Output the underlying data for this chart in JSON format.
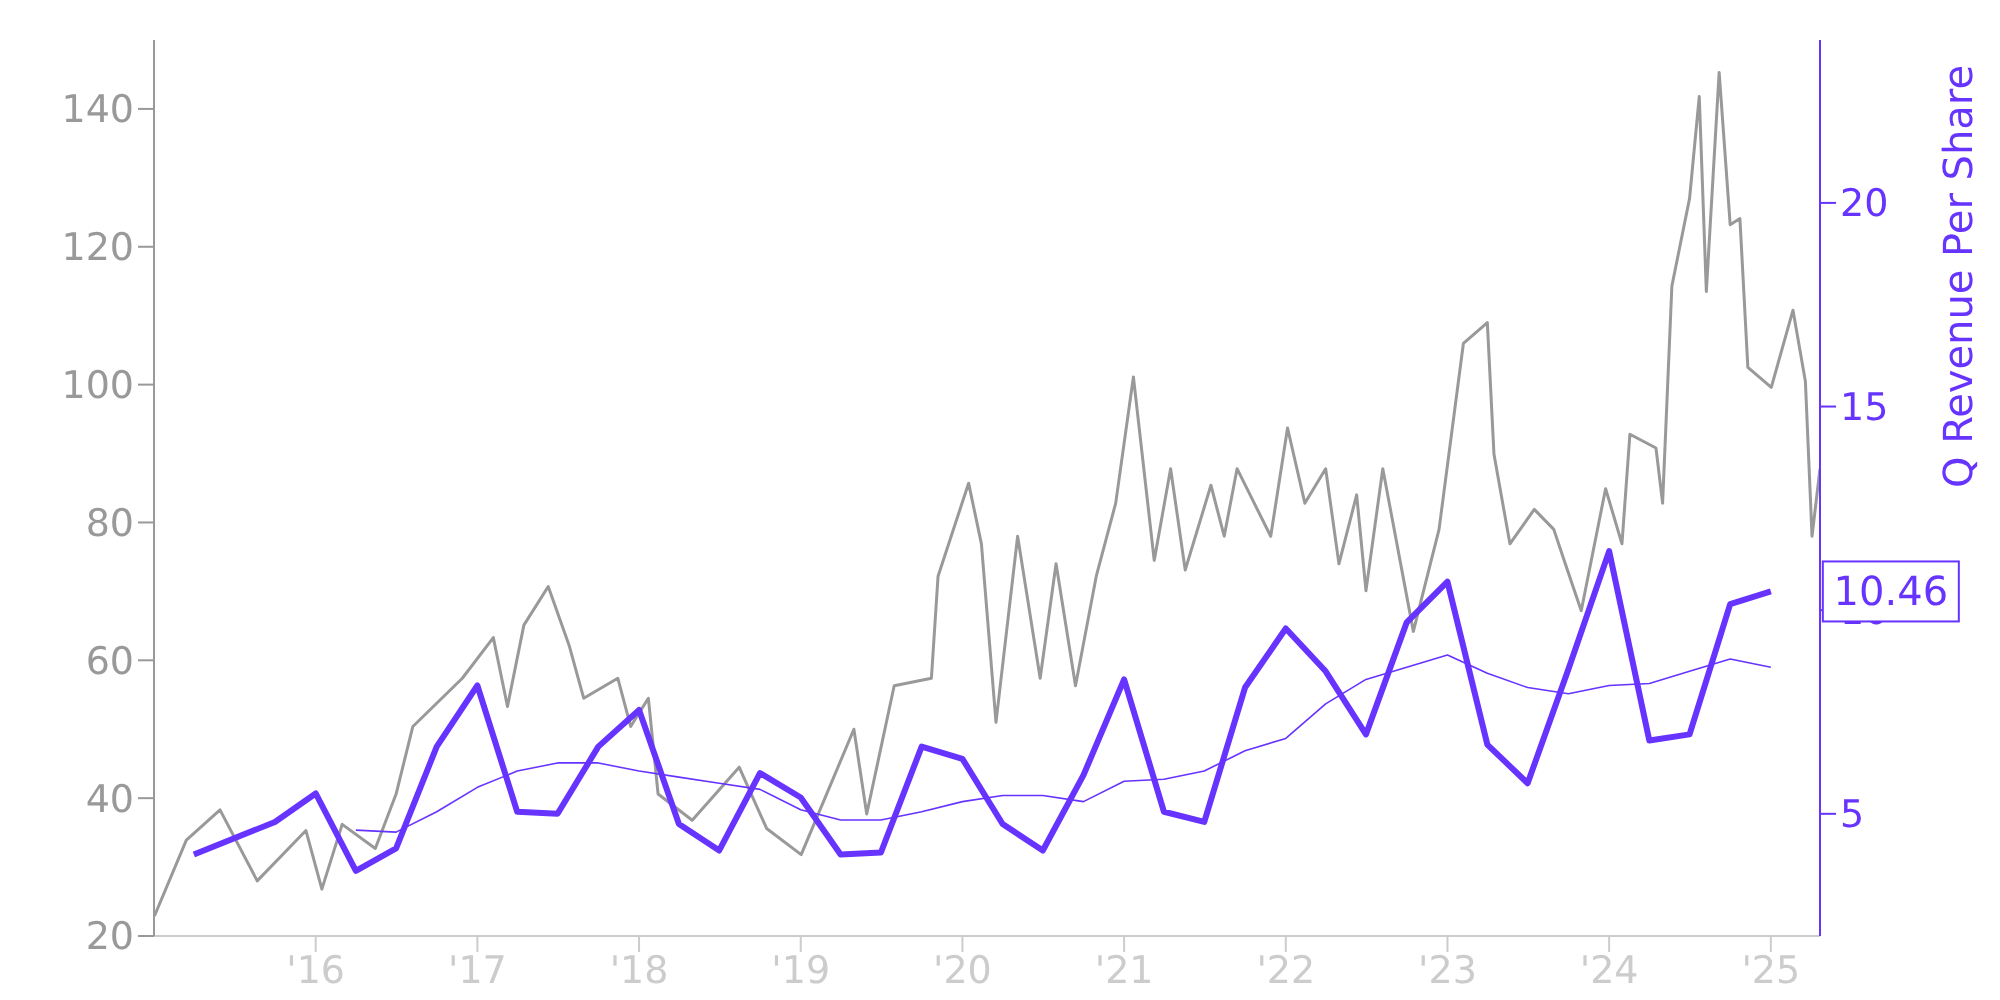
{
  "chart_data": {
    "type": "line",
    "y2label": "Q Revenue Per Share",
    "xlim": [
      "2015-01-01",
      "2025-04-22"
    ],
    "xticks": [
      {
        "value": "2016-01-01",
        "label": "'16"
      },
      {
        "value": "2017-01-01",
        "label": "'17"
      },
      {
        "value": "2018-01-01",
        "label": "'18"
      },
      {
        "value": "2019-01-01",
        "label": "'19"
      },
      {
        "value": "2020-01-01",
        "label": "'20"
      },
      {
        "value": "2021-01-01",
        "label": "'21"
      },
      {
        "value": "2022-01-01",
        "label": "'22"
      },
      {
        "value": "2023-01-01",
        "label": "'23"
      },
      {
        "value": "2024-01-01",
        "label": "'24"
      },
      {
        "value": "2025-01-01",
        "label": "'25"
      }
    ],
    "ylim": [
      20,
      150
    ],
    "yticks": [
      20,
      40,
      60,
      80,
      100,
      120,
      140
    ],
    "y2lim": [
      2,
      24
    ],
    "y2ticks": [
      5,
      10,
      15,
      20
    ],
    "grid": false,
    "legend": false,
    "marker": "none",
    "line_style": "solid",
    "series": [
      {
        "color": "#999999",
        "x": [
          "2015-01-02",
          "2015-03-15",
          "2015-05-30",
          "2015-08-22",
          "2015-12-10",
          "2016-01-15",
          "2016-03-01",
          "2016-05-15",
          "2016-07-01",
          "2016-08-08",
          "2016-11-28",
          "2017-02-06",
          "2017-03-10",
          "2017-04-16",
          "2017-06-10",
          "2017-07-27",
          "2017-08-29",
          "2017-11-14",
          "2017-12-13",
          "2018-01-22",
          "2018-02-13",
          "2018-05-01",
          "2018-08-15",
          "2018-10-16",
          "2019-01-02",
          "2019-05-01",
          "2019-05-30",
          "2019-07-31",
          "2019-10-23",
          "2019-11-07",
          "2020-01-15",
          "2020-02-13",
          "2020-03-17",
          "2020-05-05",
          "2020-06-25",
          "2020-07-31",
          "2020-09-13",
          "2020-10-30",
          "2020-12-13",
          "2021-01-22",
          "2021-03-10",
          "2021-04-16",
          "2021-05-19",
          "2021-07-16",
          "2021-08-15",
          "2021-09-13",
          "2021-11-28",
          "2022-01-05",
          "2022-02-13",
          "2022-04-01",
          "2022-05-01",
          "2022-06-10",
          "2022-07-01",
          "2022-08-08",
          "2022-10-16",
          "2022-12-13",
          "2023-02-06",
          "2023-04-01",
          "2023-04-16",
          "2023-05-22",
          "2023-07-16",
          "2023-08-29",
          "2023-09-24",
          "2023-10-30",
          "2023-12-24",
          "2024-01-30",
          "2024-02-17",
          "2024-04-16",
          "2024-05-01",
          "2024-05-22",
          "2024-07-01",
          "2024-07-23",
          "2024-08-08",
          "2024-09-06",
          "2024-10-01",
          "2024-10-23",
          "2024-11-10",
          "2025-01-02",
          "2025-02-20",
          "2025-03-20",
          "2025-04-04",
          "2025-04-22"
        ],
        "values": [
          22.9,
          33.9,
          38.3,
          28,
          35.3,
          26.8,
          36.2,
          32.7,
          40.6,
          50.4,
          57.4,
          63.3,
          53.3,
          65.1,
          70.7,
          62.2,
          54.5,
          57.4,
          50.4,
          54.5,
          40.6,
          36.8,
          44.5,
          35.6,
          31.8,
          50,
          37.7,
          56.3,
          57.4,
          72.2,
          85.7,
          76.9,
          51,
          78,
          57.4,
          74,
          56.3,
          72.2,
          82.8,
          101.1,
          74.5,
          87.8,
          73.1,
          85.4,
          78,
          87.8,
          78,
          93.7,
          82.8,
          87.8,
          74,
          84,
          70.1,
          87.8,
          64.2,
          79,
          106,
          109,
          89.9,
          76.9,
          81.9,
          79,
          74,
          67.2,
          84.9,
          76.9,
          92.8,
          90.8,
          82.8,
          114.3,
          127,
          141.8,
          113.5,
          145.3,
          123.2,
          124.1,
          102.5,
          99.6,
          110.8,
          100.5,
          78,
          87.8
        ]
      },
      {
        "color": "#6633ff",
        "axis": "y2",
        "x": [
          "2015-04-01",
          "2015-10-01",
          "2016-01-01",
          "2016-04-01",
          "2016-07-01",
          "2016-10-01",
          "2017-01-01",
          "2017-04-01",
          "2017-07-01",
          "2017-10-01",
          "2018-01-01",
          "2018-04-01",
          "2018-07-01",
          "2018-10-01",
          "2019-01-01",
          "2019-04-01",
          "2019-07-01",
          "2019-10-01",
          "2020-01-01",
          "2020-04-01",
          "2020-07-01",
          "2020-10-01",
          "2021-01-01",
          "2021-04-01",
          "2021-07-01",
          "2021-10-01",
          "2022-01-01",
          "2022-04-01",
          "2022-07-01",
          "2022-10-01",
          "2023-01-01",
          "2023-04-01",
          "2023-07-01",
          "2023-10-01",
          "2024-01-01",
          "2024-04-01",
          "2024-07-01",
          "2024-10-01",
          "2025-01-01"
        ],
        "values": [
          4.0,
          4.8,
          5.5,
          3.6,
          4.15,
          6.65,
          8.15,
          5.05,
          5.0,
          6.65,
          7.55,
          4.75,
          4.1,
          6.0,
          5.4,
          4.0,
          4.05,
          6.65,
          6.35,
          4.75,
          4.1,
          5.95,
          8.3,
          5.05,
          4.8,
          8.1,
          9.55,
          8.5,
          6.95,
          9.7,
          10.7,
          6.7,
          5.75,
          8.55,
          11.45,
          6.8,
          6.95,
          10.15,
          10.46
        ],
        "value_labels": [
          null,
          null,
          null,
          null,
          null,
          null,
          null,
          null,
          null,
          null,
          null,
          null,
          null,
          null,
          null,
          null,
          null,
          null,
          null,
          null,
          null,
          null,
          null,
          null,
          null,
          null,
          null,
          null,
          null,
          null,
          null,
          null,
          null,
          null,
          null,
          null,
          null,
          null,
          "10.46"
        ]
      },
      {
        "color": "#6633ff",
        "axis": "y2",
        "x": [
          "2016-04-01",
          "2016-07-01",
          "2016-10-01",
          "2017-01-01",
          "2017-04-01",
          "2017-07-01",
          "2017-10-01",
          "2018-01-01",
          "2018-04-01",
          "2018-07-01",
          "2018-10-01",
          "2019-01-01",
          "2019-04-01",
          "2019-07-01",
          "2019-10-01",
          "2020-01-01",
          "2020-04-01",
          "2020-07-01",
          "2020-10-01",
          "2021-01-01",
          "2021-04-01",
          "2021-07-01",
          "2021-10-01",
          "2022-01-01",
          "2022-04-01",
          "2022-07-01",
          "2022-10-01",
          "2023-01-01",
          "2023-04-01",
          "2023-07-01",
          "2023-10-01",
          "2024-01-01",
          "2024-04-01",
          "2024-07-01",
          "2024-10-01",
          "2025-01-01"
        ],
        "values": [
          4.6,
          4.55,
          5.05,
          5.65,
          6.05,
          6.25,
          6.25,
          6.05,
          5.9,
          5.75,
          5.6,
          5.1,
          4.85,
          4.85,
          5.05,
          5.3,
          5.45,
          5.45,
          5.3,
          5.8,
          5.85,
          6.05,
          6.55,
          6.85,
          7.7,
          8.3,
          8.6,
          8.9,
          8.45,
          8.1,
          7.95,
          8.15,
          8.2,
          8.5,
          8.8,
          8.6
        ]
      }
    ]
  }
}
